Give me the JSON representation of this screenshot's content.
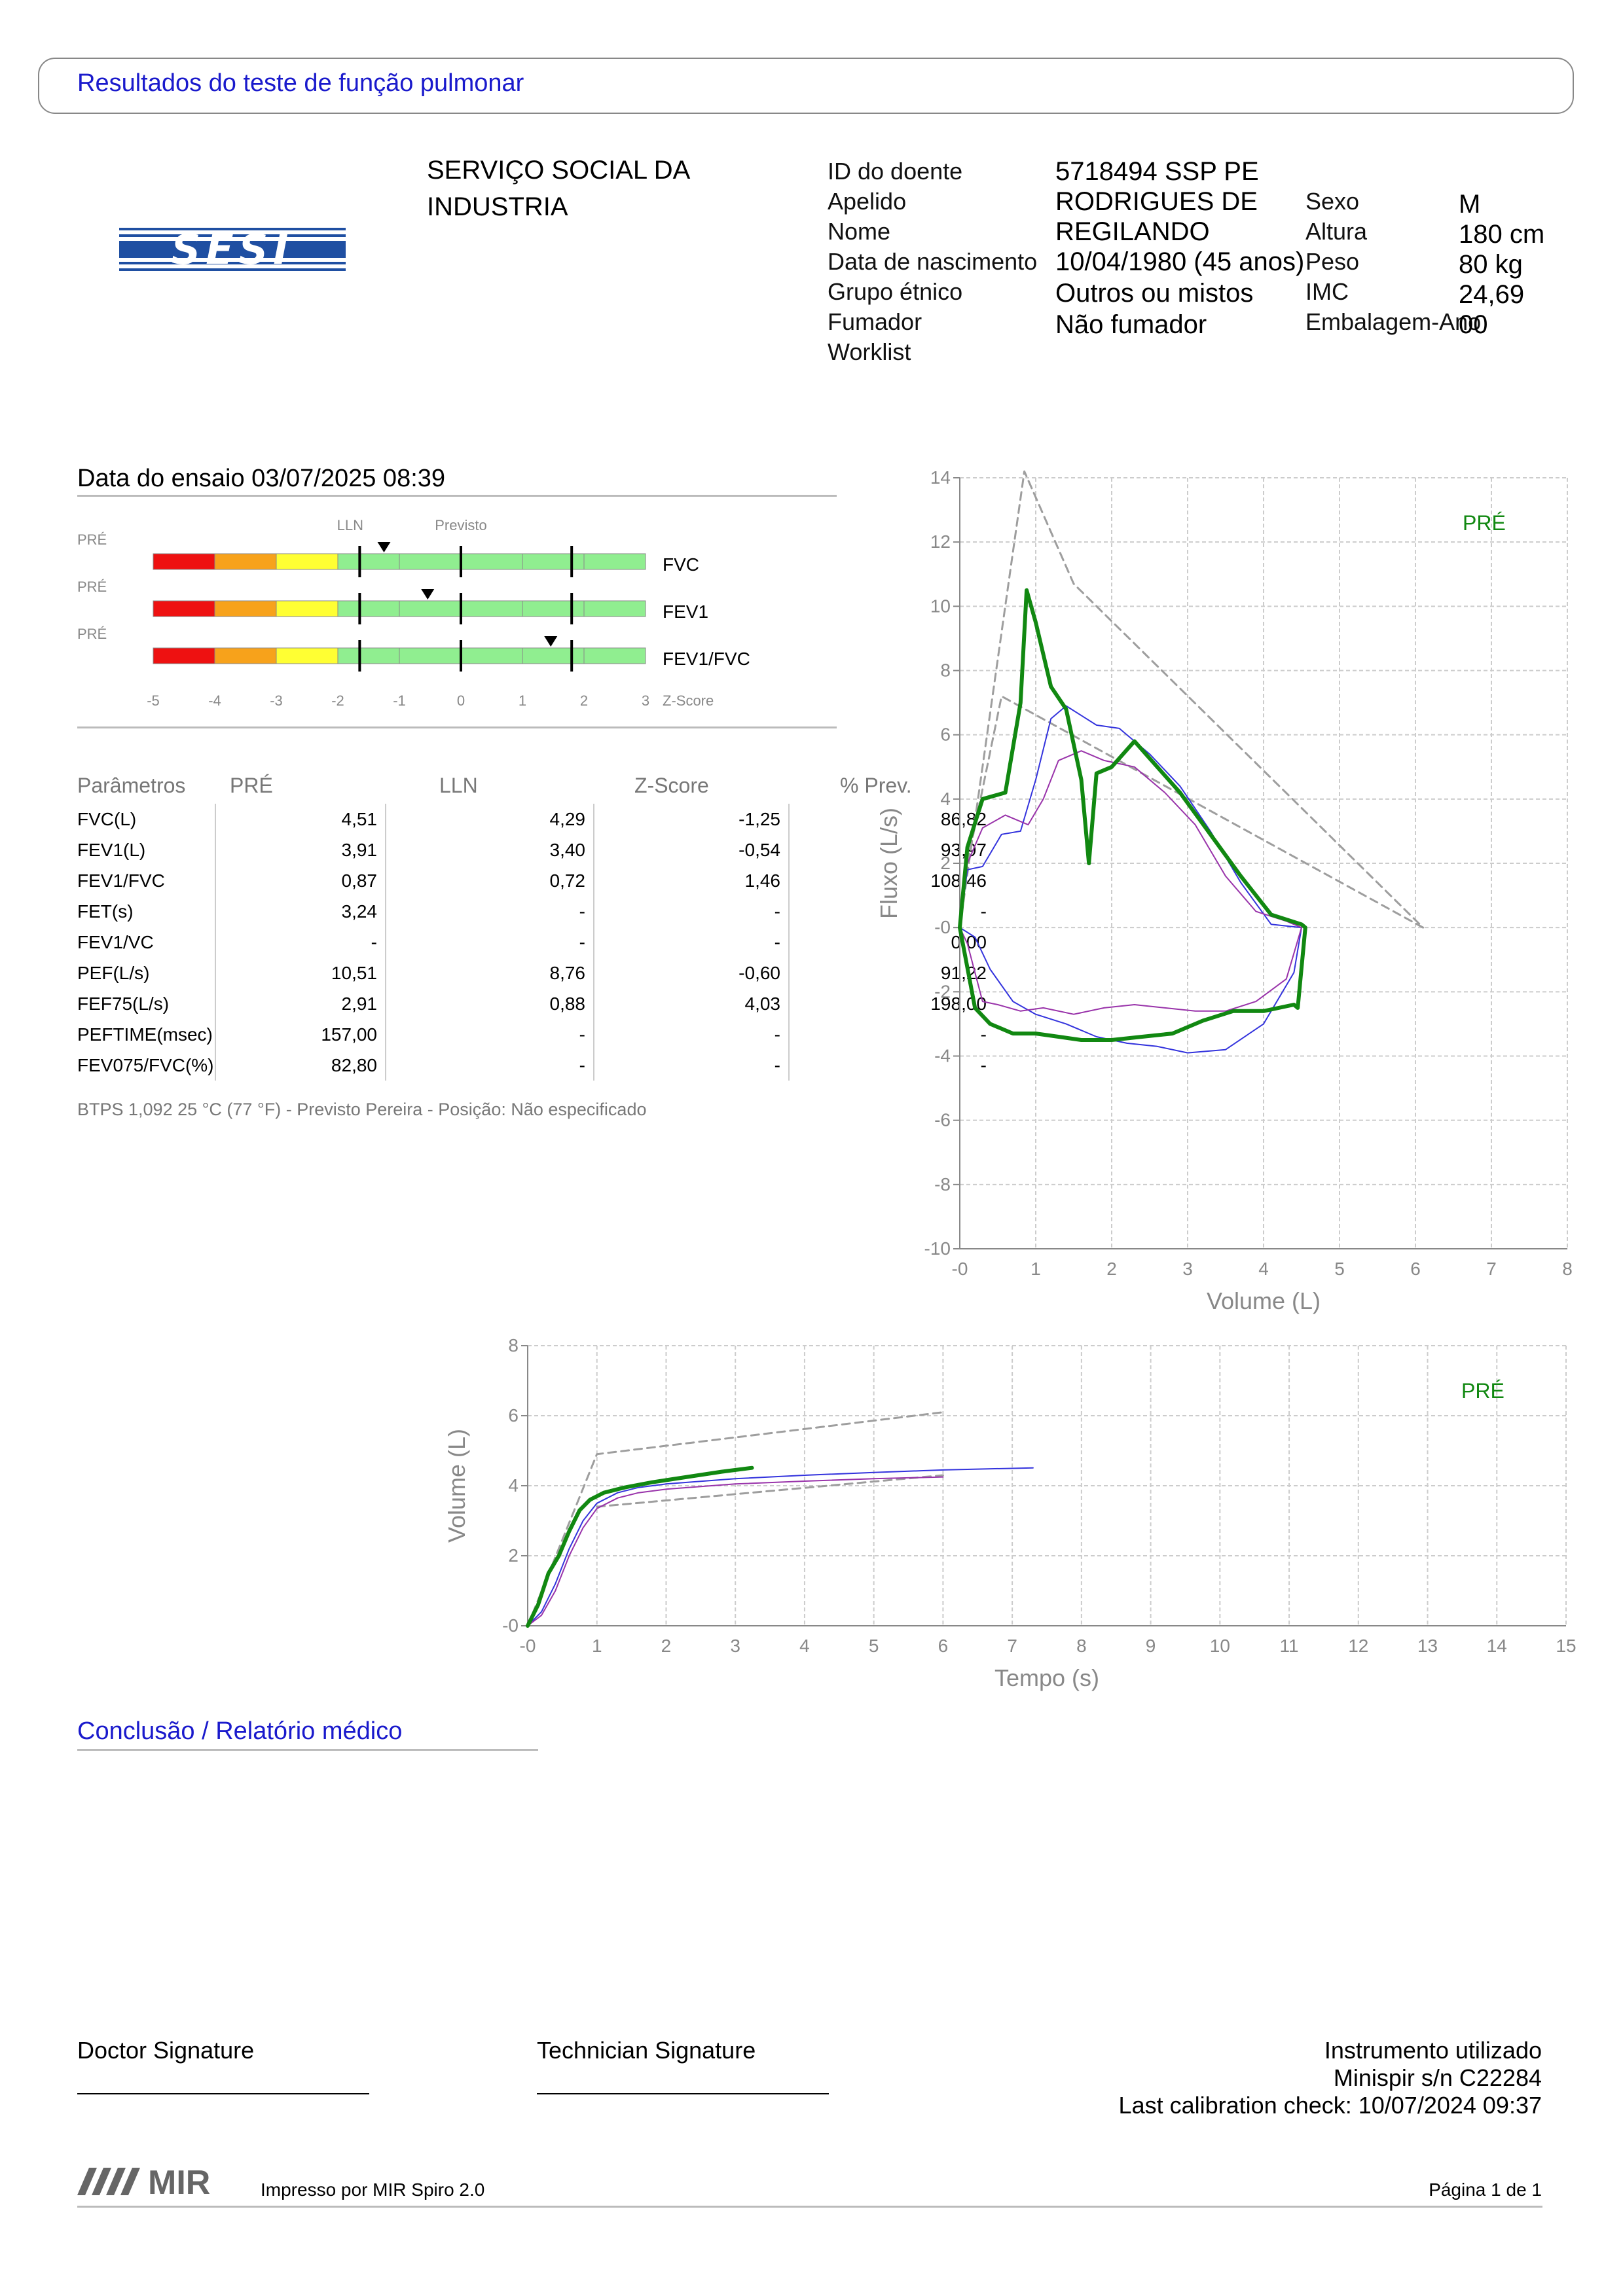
{
  "header": {
    "title": "Resultados do teste de função pulmonar"
  },
  "org": {
    "line1": "SERVIÇO SOCIAL DA",
    "line2": "INDUSTRIA",
    "logo_text": "SESI"
  },
  "patient": {
    "id_label": "ID do doente",
    "id_value": "5718494 SSP PE",
    "surname_label": "Apelido",
    "surname_value": "RODRIGUES DE",
    "name_label": "Nome",
    "name_value": "REGILANDO",
    "dob_label": "Data de nascimento",
    "dob_value": "10/04/1980 (45 anos)",
    "ethnic_label": "Grupo étnico",
    "ethnic_value": "Outros ou mistos",
    "smoker_label": "Fumador",
    "smoker_value": "Não fumador",
    "worklist_label": "Worklist",
    "sex_label": "Sexo",
    "sex_value": "M",
    "height_label": "Altura",
    "height_value": "180 cm",
    "weight_label": "Peso",
    "weight_value": "80 kg",
    "bmi_label": "IMC",
    "bmi_value": "24,69",
    "pack_label": "Embalagem-Ano",
    "pack_value": "00"
  },
  "test": {
    "date_text": "Data do ensaio 03/07/2025 08:39"
  },
  "zscore_panel": {
    "lln_label": "LLN",
    "pred_label": "Previsto",
    "axis_unit": "Z-Score",
    "ticks": [
      "-5",
      "-4",
      "-3",
      "-2",
      "-1",
      "0",
      "1",
      "2",
      "3"
    ],
    "rows": [
      {
        "tag": "PRÉ",
        "name": "FVC",
        "z": -1.25
      },
      {
        "tag": "PRÉ",
        "name": "FEV1",
        "z": -0.54
      },
      {
        "tag": "PRÉ",
        "name": "FEV1/FVC",
        "z": 1.46
      }
    ],
    "colors": {
      "red": "#ee1111",
      "orange": "#f7a21b",
      "yellow": "#ffff33",
      "green": "#90ee90"
    }
  },
  "params": {
    "headers": [
      "Parâmetros",
      "PRÉ",
      "LLN",
      "Z-Score",
      "% Prev."
    ],
    "rows": [
      [
        "FVC(L)",
        "4,51",
        "4,29",
        "-1,25",
        "86,82"
      ],
      [
        "FEV1(L)",
        "3,91",
        "3,40",
        "-0,54",
        "93,97"
      ],
      [
        "FEV1/FVC",
        "0,87",
        "0,72",
        "1,46",
        "108,46"
      ],
      [
        "FET(s)",
        "3,24",
        "-",
        "-",
        "-"
      ],
      [
        "FEV1/VC",
        "-",
        "-",
        "-",
        "0,00"
      ],
      [
        "PEF(L/s)",
        "10,51",
        "8,76",
        "-0,60",
        "91,22"
      ],
      [
        "FEF75(L/s)",
        "2,91",
        "0,88",
        "4,03",
        "198,00"
      ],
      [
        "PEFTIME(msec)",
        "157,00",
        "-",
        "-",
        "-"
      ],
      [
        "FEV075/FVC(%)",
        "82,80",
        "-",
        "-",
        "-"
      ]
    ],
    "note": "BTPS 1,092 25 °C (77 °F) - Previsto Pereira - Posição: Não especificado"
  },
  "chart_data": [
    {
      "type": "line",
      "title": "",
      "legend": "PRÉ",
      "xlabel": "Volume (L)",
      "ylabel": "Fluxo (L/s)",
      "xlim": [
        0,
        8
      ],
      "ylim": [
        -10,
        14
      ],
      "grid": true,
      "xticks": [
        "-0",
        "1",
        "2",
        "3",
        "4",
        "5",
        "6",
        "7",
        "8"
      ],
      "yticks": [
        "14",
        "12",
        "10",
        "8",
        "6",
        "4",
        "2",
        "-0",
        "-2",
        "-4",
        "-6",
        "-8",
        "-10"
      ],
      "series": [
        {
          "color": "#9e9e9e",
          "dashed": true,
          "x": [
            0,
            0.85,
            1.5,
            6.1,
            0.55,
            0.1,
            0
          ],
          "y": [
            0,
            14.2,
            10.7,
            0,
            7.2,
            2.0,
            0
          ]
        },
        {
          "color": "#3333dd",
          "width": 2,
          "x": [
            0,
            0.1,
            0.3,
            0.55,
            0.8,
            1.0,
            1.2,
            1.4,
            1.6,
            1.8,
            2.1,
            2.5,
            2.9,
            3.3,
            3.7,
            4.1,
            4.5,
            4.4,
            4.0,
            3.5,
            3.0,
            2.6,
            2.2,
            1.8,
            1.4,
            1.0,
            0.7,
            0.4,
            0.2,
            0
          ],
          "y": [
            0,
            1.8,
            1.9,
            2.9,
            3.0,
            4.6,
            6.5,
            6.9,
            6.6,
            6.3,
            6.2,
            5.4,
            4.4,
            3.0,
            1.4,
            0.1,
            0,
            -1.4,
            -3.0,
            -3.8,
            -3.9,
            -3.7,
            -3.6,
            -3.4,
            -3.0,
            -2.7,
            -2.3,
            -1.3,
            -0.3,
            0
          ]
        },
        {
          "color": "#9933aa",
          "width": 2,
          "x": [
            0,
            0.1,
            0.3,
            0.6,
            0.9,
            1.1,
            1.3,
            1.6,
            1.9,
            2.3,
            2.7,
            3.1,
            3.5,
            3.9,
            4.3,
            4.5,
            4.3,
            3.9,
            3.5,
            3.1,
            2.7,
            2.3,
            1.9,
            1.5,
            1.1,
            0.8,
            0.5,
            0.3,
            0.1,
            0
          ],
          "y": [
            0,
            2.0,
            3.1,
            3.5,
            3.2,
            4.0,
            5.2,
            5.5,
            5.2,
            5.0,
            4.2,
            3.2,
            1.6,
            0.5,
            0.2,
            0,
            -1.6,
            -2.3,
            -2.6,
            -2.6,
            -2.5,
            -2.4,
            -2.5,
            -2.7,
            -2.5,
            -2.6,
            -2.4,
            -2.3,
            -0.5,
            0
          ]
        },
        {
          "color": "#118811",
          "width": 6,
          "x": [
            0,
            0.1,
            0.3,
            0.6,
            0.8,
            0.88,
            1.0,
            1.2,
            1.4,
            1.6,
            1.7,
            1.8,
            2.0,
            2.3,
            2.6,
            2.9,
            3.3,
            3.7,
            4.1,
            4.5,
            4.55,
            4.45,
            4.4,
            4.0,
            3.6,
            3.2,
            2.8,
            2.4,
            2.0,
            1.6,
            1.3,
            1.0,
            0.7,
            0.4,
            0.2,
            0
          ],
          "y": [
            0,
            2.5,
            4.0,
            4.2,
            7.0,
            10.5,
            9.5,
            7.5,
            6.8,
            4.6,
            2.0,
            4.8,
            5.0,
            5.8,
            5.0,
            4.2,
            2.9,
            1.6,
            0.4,
            0.1,
            0,
            -2.5,
            -2.4,
            -2.6,
            -2.6,
            -2.9,
            -3.3,
            -3.4,
            -3.5,
            -3.5,
            -3.4,
            -3.3,
            -3.3,
            -3.0,
            -2.5,
            0
          ]
        }
      ]
    },
    {
      "type": "line",
      "title": "",
      "legend": "PRÉ",
      "xlabel": "Tempo (s)",
      "ylabel": "Volume (L)",
      "xlim": [
        0,
        15
      ],
      "ylim": [
        0,
        8
      ],
      "grid": true,
      "xticks": [
        "-0",
        "1",
        "2",
        "3",
        "4",
        "5",
        "6",
        "7",
        "8",
        "9",
        "10",
        "11",
        "12",
        "13",
        "14",
        "15"
      ],
      "yticks": [
        "8",
        "6",
        "4",
        "2",
        "-0"
      ],
      "series": [
        {
          "color": "#9e9e9e",
          "dashed": true,
          "x": [
            0,
            1.0,
            6.0
          ],
          "y": [
            0,
            4.9,
            6.1
          ]
        },
        {
          "color": "#9e9e9e",
          "dashed": true,
          "x": [
            1.0,
            6.0
          ],
          "y": [
            3.4,
            4.3
          ]
        },
        {
          "color": "#3333dd",
          "width": 2,
          "x": [
            0,
            0.2,
            0.4,
            0.6,
            0.8,
            1.0,
            1.3,
            1.6,
            2.0,
            3.0,
            4.0,
            5.0,
            6.0,
            7.3
          ],
          "y": [
            0,
            0.4,
            1.2,
            2.2,
            3.0,
            3.5,
            3.8,
            3.95,
            4.05,
            4.2,
            4.3,
            4.38,
            4.45,
            4.51
          ]
        },
        {
          "color": "#9933aa",
          "width": 2,
          "x": [
            0,
            0.2,
            0.4,
            0.6,
            0.8,
            1.0,
            1.3,
            1.6,
            2.0,
            3.0,
            4.0,
            5.0,
            6.0
          ],
          "y": [
            0,
            0.3,
            1.0,
            2.0,
            2.8,
            3.35,
            3.65,
            3.8,
            3.9,
            4.05,
            4.13,
            4.2,
            4.25
          ]
        },
        {
          "color": "#118811",
          "width": 6,
          "x": [
            0,
            0.15,
            0.3,
            0.45,
            0.6,
            0.75,
            0.9,
            1.1,
            1.4,
            1.8,
            2.3,
            2.8,
            3.24
          ],
          "y": [
            0,
            0.6,
            1.5,
            2.0,
            2.7,
            3.3,
            3.6,
            3.8,
            3.95,
            4.1,
            4.25,
            4.4,
            4.51
          ]
        }
      ]
    }
  ],
  "conclusion": {
    "title": "Conclusão / Relatório médico"
  },
  "signatures": {
    "doctor": "Doctor Signature",
    "technician": "Technician Signature"
  },
  "instrument": {
    "label": "Instrumento utilizado",
    "device": "Minispir s/n C22284",
    "calibration": "Last calibration check: 10/07/2024 09:37"
  },
  "footer": {
    "logo_text": "MIR",
    "printed_by": "Impresso por MIR Spiro 2.0",
    "page": "Página 1 de 1"
  }
}
